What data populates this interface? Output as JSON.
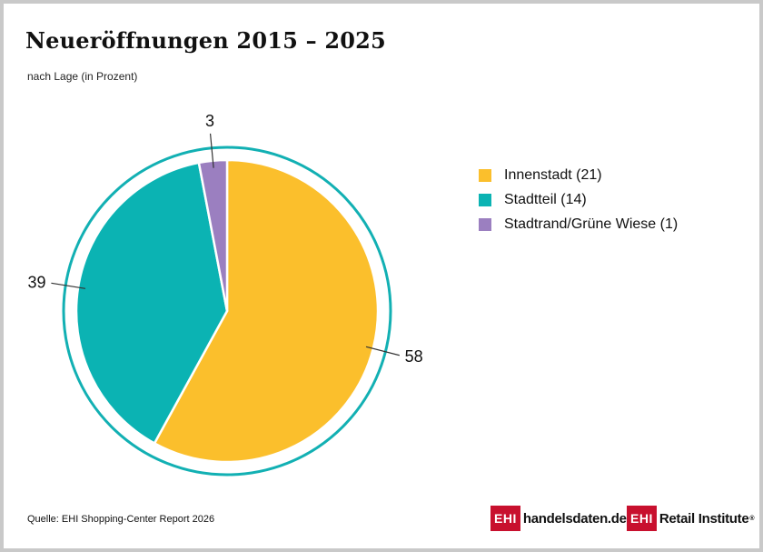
{
  "header": {
    "title": "Neueröffnungen 2015 – 2025",
    "subtitle": "nach Lage (in Prozent)"
  },
  "chart_data": {
    "type": "pie",
    "title": "Neueröffnungen 2015 – 2025",
    "subtitle": "nach Lage (in Prozent)",
    "slices": [
      {
        "name": "Innenstadt (21)",
        "value": 58,
        "label": "58",
        "color": "#fbbf2c"
      },
      {
        "name": "Stadtteil (14)",
        "value": 39,
        "label": "39",
        "color": "#0bb3b3"
      },
      {
        "name": "Stadtrand/Grüne Wiese (1)",
        "value": 3,
        "label": "3",
        "color": "#9b7fc0"
      }
    ],
    "ring_color": "#12b0b3",
    "legend_placement": "right"
  },
  "legend": {
    "items": [
      {
        "label": "Innenstadt (21)",
        "color": "#fbbf2c"
      },
      {
        "label": "Stadtteil (14)",
        "color": "#0bb3b3"
      },
      {
        "label": "Stadtrand/Grüne Wiese (1)",
        "color": "#9b7fc0"
      }
    ]
  },
  "footer": {
    "source": "Quelle: EHI Shopping-Center Report 2026",
    "logo1_box": "EHI",
    "logo1_text": "handelsdaten.de",
    "logo2_box": "EHI",
    "logo2_text": "Retail Institute",
    "logo2_reg": "®"
  },
  "colors": {
    "brand_red": "#c8102e",
    "frame": "#c9c9c9"
  }
}
